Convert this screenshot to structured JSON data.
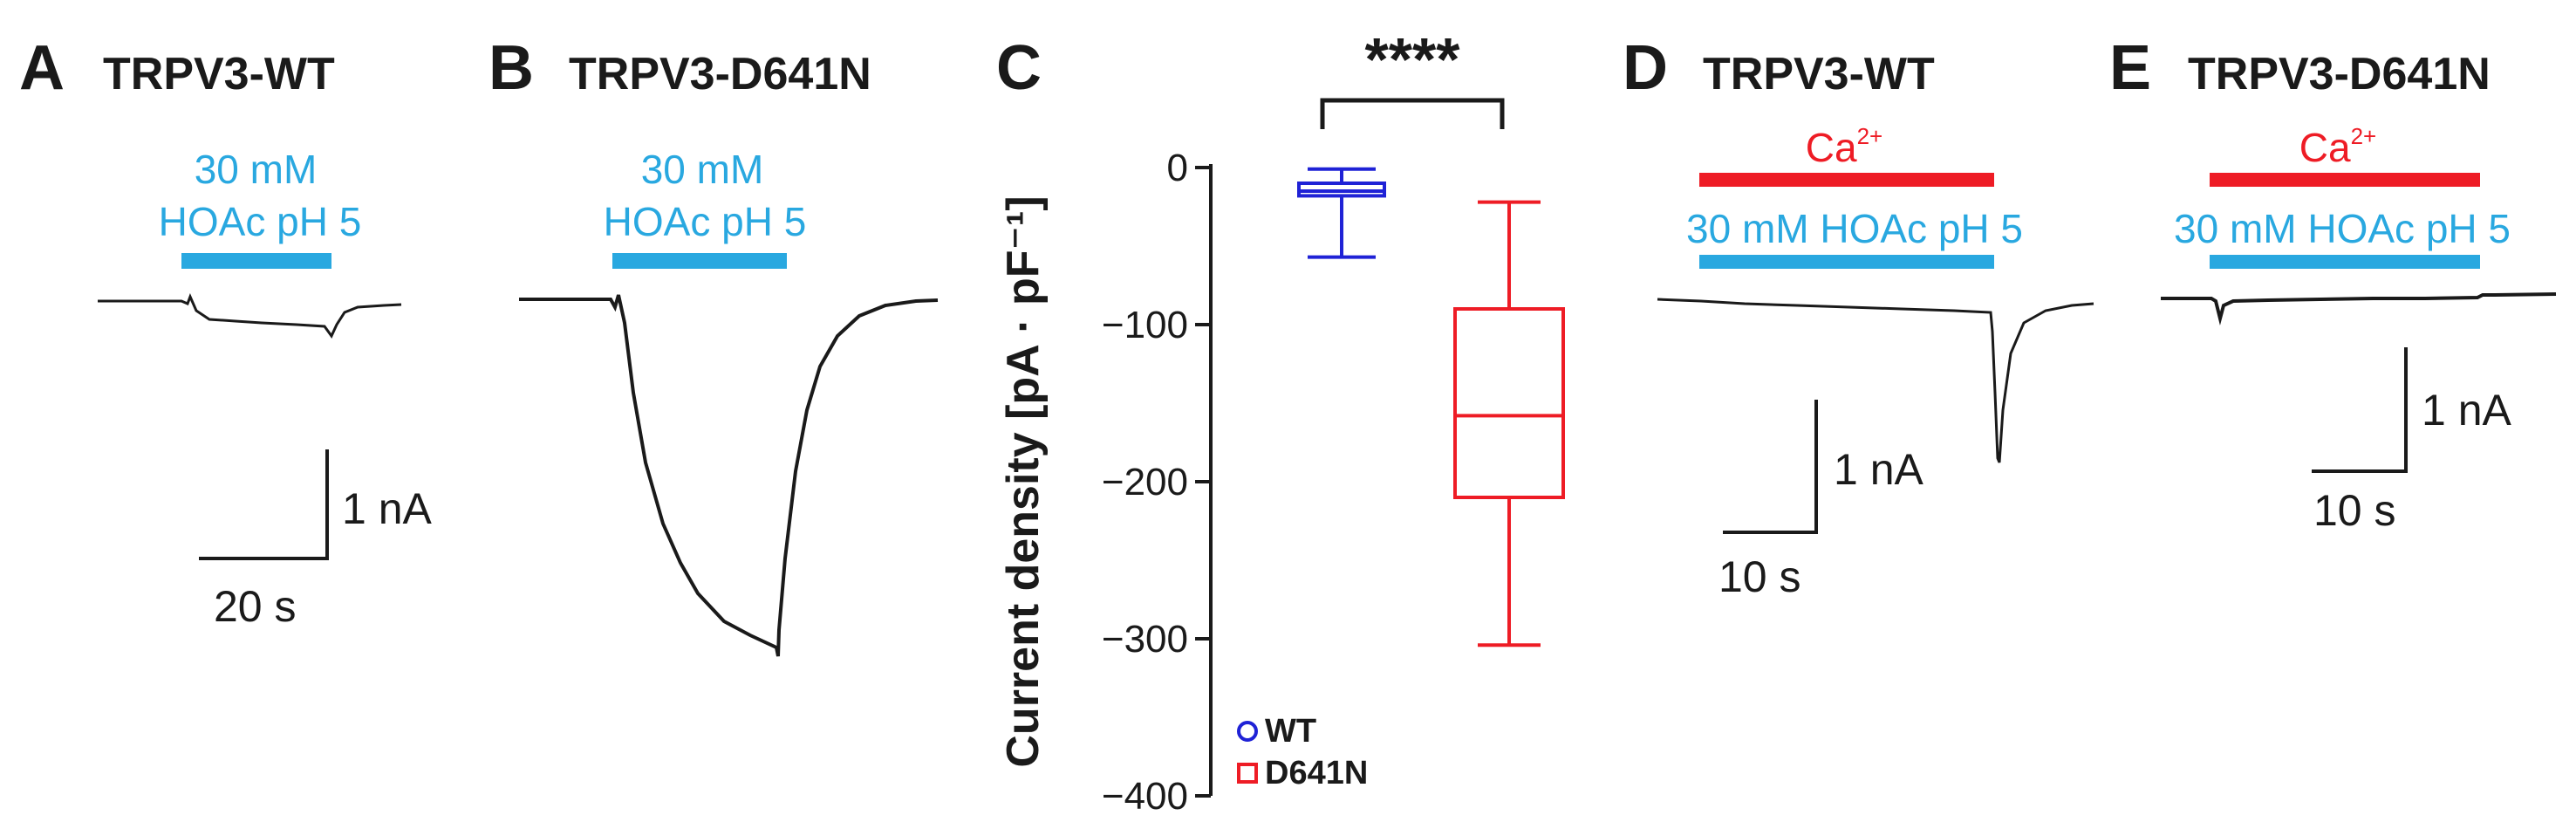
{
  "colors": {
    "trace": "#1a1a1a",
    "acid_bar": "#29a8e0",
    "calcium_bar": "#ee1c25",
    "wt": "#1f22d6",
    "d641n": "#ee1c25"
  },
  "panels": {
    "A": {
      "letter": "A",
      "title": "TRPV3-WT",
      "stim_line1": "30 mM",
      "stim_line2": "HOAc pH 5",
      "scale_current": "1 nA",
      "scale_time": "20 s"
    },
    "B": {
      "letter": "B",
      "title": "TRPV3-D641N",
      "stim_line1": "30 mM",
      "stim_line2": "HOAc pH 5"
    },
    "C": {
      "letter": "C"
    },
    "D": {
      "letter": "D",
      "title": "TRPV3-WT",
      "ca_label": "Ca",
      "ca_sup": "2+",
      "stim": "30 mM HOAc pH 5",
      "scale_current": "1 nA",
      "scale_time": "10 s"
    },
    "E": {
      "letter": "E",
      "title": "TRPV3-D641N",
      "ca_label": "Ca",
      "ca_sup": "2+",
      "stim": "30 mM HOAc pH 5",
      "scale_current": "1 nA",
      "scale_time": "10 s"
    }
  },
  "chart_data": {
    "type": "box",
    "ylabel": "Current density [pA · pF⁻¹]",
    "ylim": [
      -400,
      0
    ],
    "yticks": [
      0,
      -100,
      -200,
      -300,
      -400
    ],
    "ytick_labels": [
      "0",
      "−100",
      "−200",
      "−300",
      "−400"
    ],
    "significance": "****",
    "legend_position": "bottom-left",
    "series": [
      {
        "name": "WT",
        "marker": "circle",
        "color": "#1f22d6",
        "min": -57,
        "q1": -18,
        "median": -15,
        "q3": -10,
        "max": -1
      },
      {
        "name": "D641N",
        "marker": "square",
        "color": "#ee1c25",
        "min": -304,
        "q1": -210,
        "median": -158,
        "q3": -90,
        "max": -22
      }
    ]
  }
}
